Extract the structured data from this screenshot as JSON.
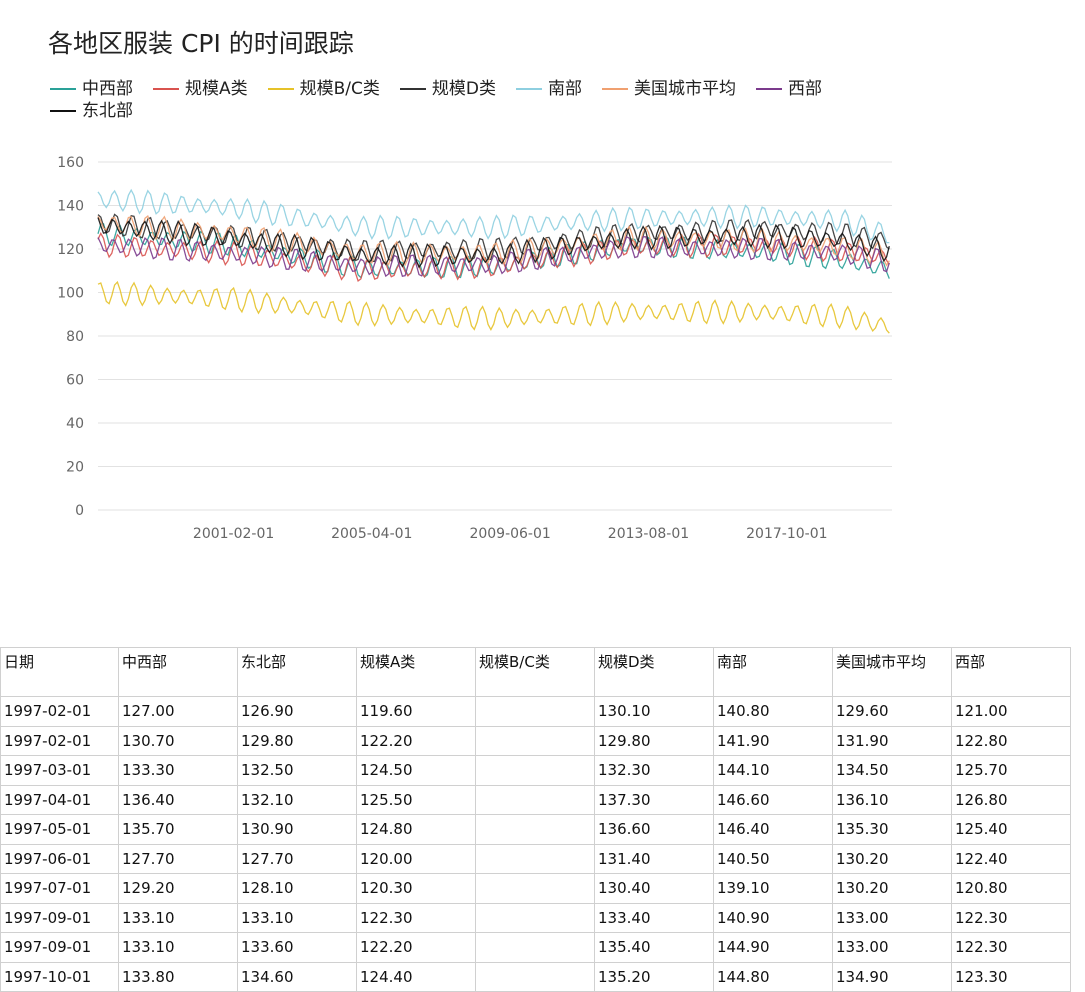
{
  "chart_data": {
    "type": "line",
    "title": "各地区服装 CPI 的时间跟踪",
    "xlabel": "",
    "ylabel": "",
    "ylim": [
      0,
      160
    ],
    "yticks": [
      0,
      20,
      40,
      60,
      80,
      100,
      120,
      140,
      160
    ],
    "xticks": [
      "2001-02-01",
      "2005-04-01",
      "2009-06-01",
      "2013-08-01",
      "2017-10-01"
    ],
    "x_range": [
      "1997-01-01",
      "2020-12-01"
    ],
    "grid": true,
    "legend_position": "top-left",
    "series": [
      {
        "name": "中西部",
        "color": "#2aa198",
        "points": [
          [
            "1997-01-01",
            127
          ],
          [
            "2001-01-01",
            122
          ],
          [
            "2005-01-01",
            111
          ],
          [
            "2009-01-01",
            112
          ],
          [
            "2013-01-01",
            122
          ],
          [
            "2017-01-01",
            119
          ],
          [
            "2019-06-01",
            115
          ],
          [
            "2020-12-01",
            110
          ]
        ]
      },
      {
        "name": "规模A类",
        "color": "#d9534f",
        "points": [
          [
            "1997-01-01",
            122
          ],
          [
            "2001-01-01",
            118
          ],
          [
            "2005-01-01",
            110
          ],
          [
            "2009-01-01",
            112
          ],
          [
            "2013-01-01",
            121
          ],
          [
            "2017-01-01",
            122
          ],
          [
            "2019-06-01",
            119
          ],
          [
            "2020-12-01",
            116
          ]
        ]
      },
      {
        "name": "规模B/C类",
        "color": "#e6c229",
        "points": [
          [
            "1997-01-01",
            100
          ],
          [
            "2001-01-01",
            97
          ],
          [
            "2005-01-01",
            90
          ],
          [
            "2009-01-01",
            88
          ],
          [
            "2013-01-01",
            91
          ],
          [
            "2017-01-01",
            91
          ],
          [
            "2019-06-01",
            89
          ],
          [
            "2020-12-01",
            84
          ]
        ]
      },
      {
        "name": "规模D类",
        "color": "#333333",
        "points": [
          [
            "1997-01-01",
            132
          ],
          [
            "2001-01-01",
            126
          ],
          [
            "2005-01-01",
            119
          ],
          [
            "2009-01-01",
            120
          ],
          [
            "2013-01-01",
            127
          ],
          [
            "2017-01-01",
            129
          ],
          [
            "2019-06-01",
            127
          ],
          [
            "2020-12-01",
            123
          ]
        ]
      },
      {
        "name": "南部",
        "color": "#8ecfe0",
        "points": [
          [
            "1997-01-01",
            143
          ],
          [
            "2001-01-01",
            139
          ],
          [
            "2005-01-01",
            130
          ],
          [
            "2009-01-01",
            130
          ],
          [
            "2013-01-01",
            134
          ],
          [
            "2017-01-01",
            135
          ],
          [
            "2019-06-01",
            133
          ],
          [
            "2020-12-01",
            126
          ]
        ]
      },
      {
        "name": "美国城市平均",
        "color": "#f0a070",
        "points": [
          [
            "1997-01-01",
            132
          ],
          [
            "2001-01-01",
            127
          ],
          [
            "2005-01-01",
            118
          ],
          [
            "2009-01-01",
            118
          ],
          [
            "2013-01-01",
            125
          ],
          [
            "2017-01-01",
            124
          ],
          [
            "2019-06-01",
            121
          ],
          [
            "2020-12-01",
            117
          ]
        ]
      },
      {
        "name": "西部",
        "color": "#7b3a8c",
        "points": [
          [
            "1997-01-01",
            122
          ],
          [
            "2001-01-01",
            118
          ],
          [
            "2005-01-01",
            112
          ],
          [
            "2009-01-01",
            113
          ],
          [
            "2013-01-01",
            121
          ],
          [
            "2017-01-01",
            120
          ],
          [
            "2019-06-01",
            118
          ],
          [
            "2020-12-01",
            114
          ]
        ]
      },
      {
        "name": "东北部",
        "color": "#111111",
        "points": [
          [
            "1997-01-01",
            131
          ],
          [
            "2001-01-01",
            125
          ],
          [
            "2005-01-01",
            117
          ],
          [
            "2009-01-01",
            117
          ],
          [
            "2013-01-01",
            125
          ],
          [
            "2017-01-01",
            126
          ],
          [
            "2019-06-01",
            124
          ],
          [
            "2020-12-01",
            119
          ]
        ]
      }
    ]
  },
  "table": {
    "headers": [
      "日期",
      "中西部",
      "东北部",
      "规模A类",
      "规模B/C类",
      "规模D类",
      "南部",
      "美国城市平均",
      "西部"
    ],
    "rows": [
      [
        "1997-02-01",
        "127.00",
        "126.90",
        "119.60",
        "",
        "130.10",
        "140.80",
        "129.60",
        "121.00"
      ],
      [
        "1997-02-01",
        "130.70",
        "129.80",
        "122.20",
        "",
        "129.80",
        "141.90",
        "131.90",
        "122.80"
      ],
      [
        "1997-03-01",
        "133.30",
        "132.50",
        "124.50",
        "",
        "132.30",
        "144.10",
        "134.50",
        "125.70"
      ],
      [
        "1997-04-01",
        "136.40",
        "132.10",
        "125.50",
        "",
        "137.30",
        "146.60",
        "136.10",
        "126.80"
      ],
      [
        "1997-05-01",
        "135.70",
        "130.90",
        "124.80",
        "",
        "136.60",
        "146.40",
        "135.30",
        "125.40"
      ],
      [
        "1997-06-01",
        "127.70",
        "127.70",
        "120.00",
        "",
        "131.40",
        "140.50",
        "130.20",
        "122.40"
      ],
      [
        "1997-07-01",
        "129.20",
        "128.10",
        "120.30",
        "",
        "130.40",
        "139.10",
        "130.20",
        "120.80"
      ],
      [
        "1997-09-01",
        "133.10",
        "133.10",
        "122.30",
        "",
        "133.40",
        "140.90",
        "133.00",
        "122.30"
      ],
      [
        "1997-09-01",
        "133.10",
        "133.60",
        "122.20",
        "",
        "135.40",
        "144.90",
        "133.00",
        "122.30"
      ],
      [
        "1997-10-01",
        "133.80",
        "134.60",
        "124.40",
        "",
        "135.20",
        "144.80",
        "134.90",
        "123.30"
      ]
    ]
  }
}
